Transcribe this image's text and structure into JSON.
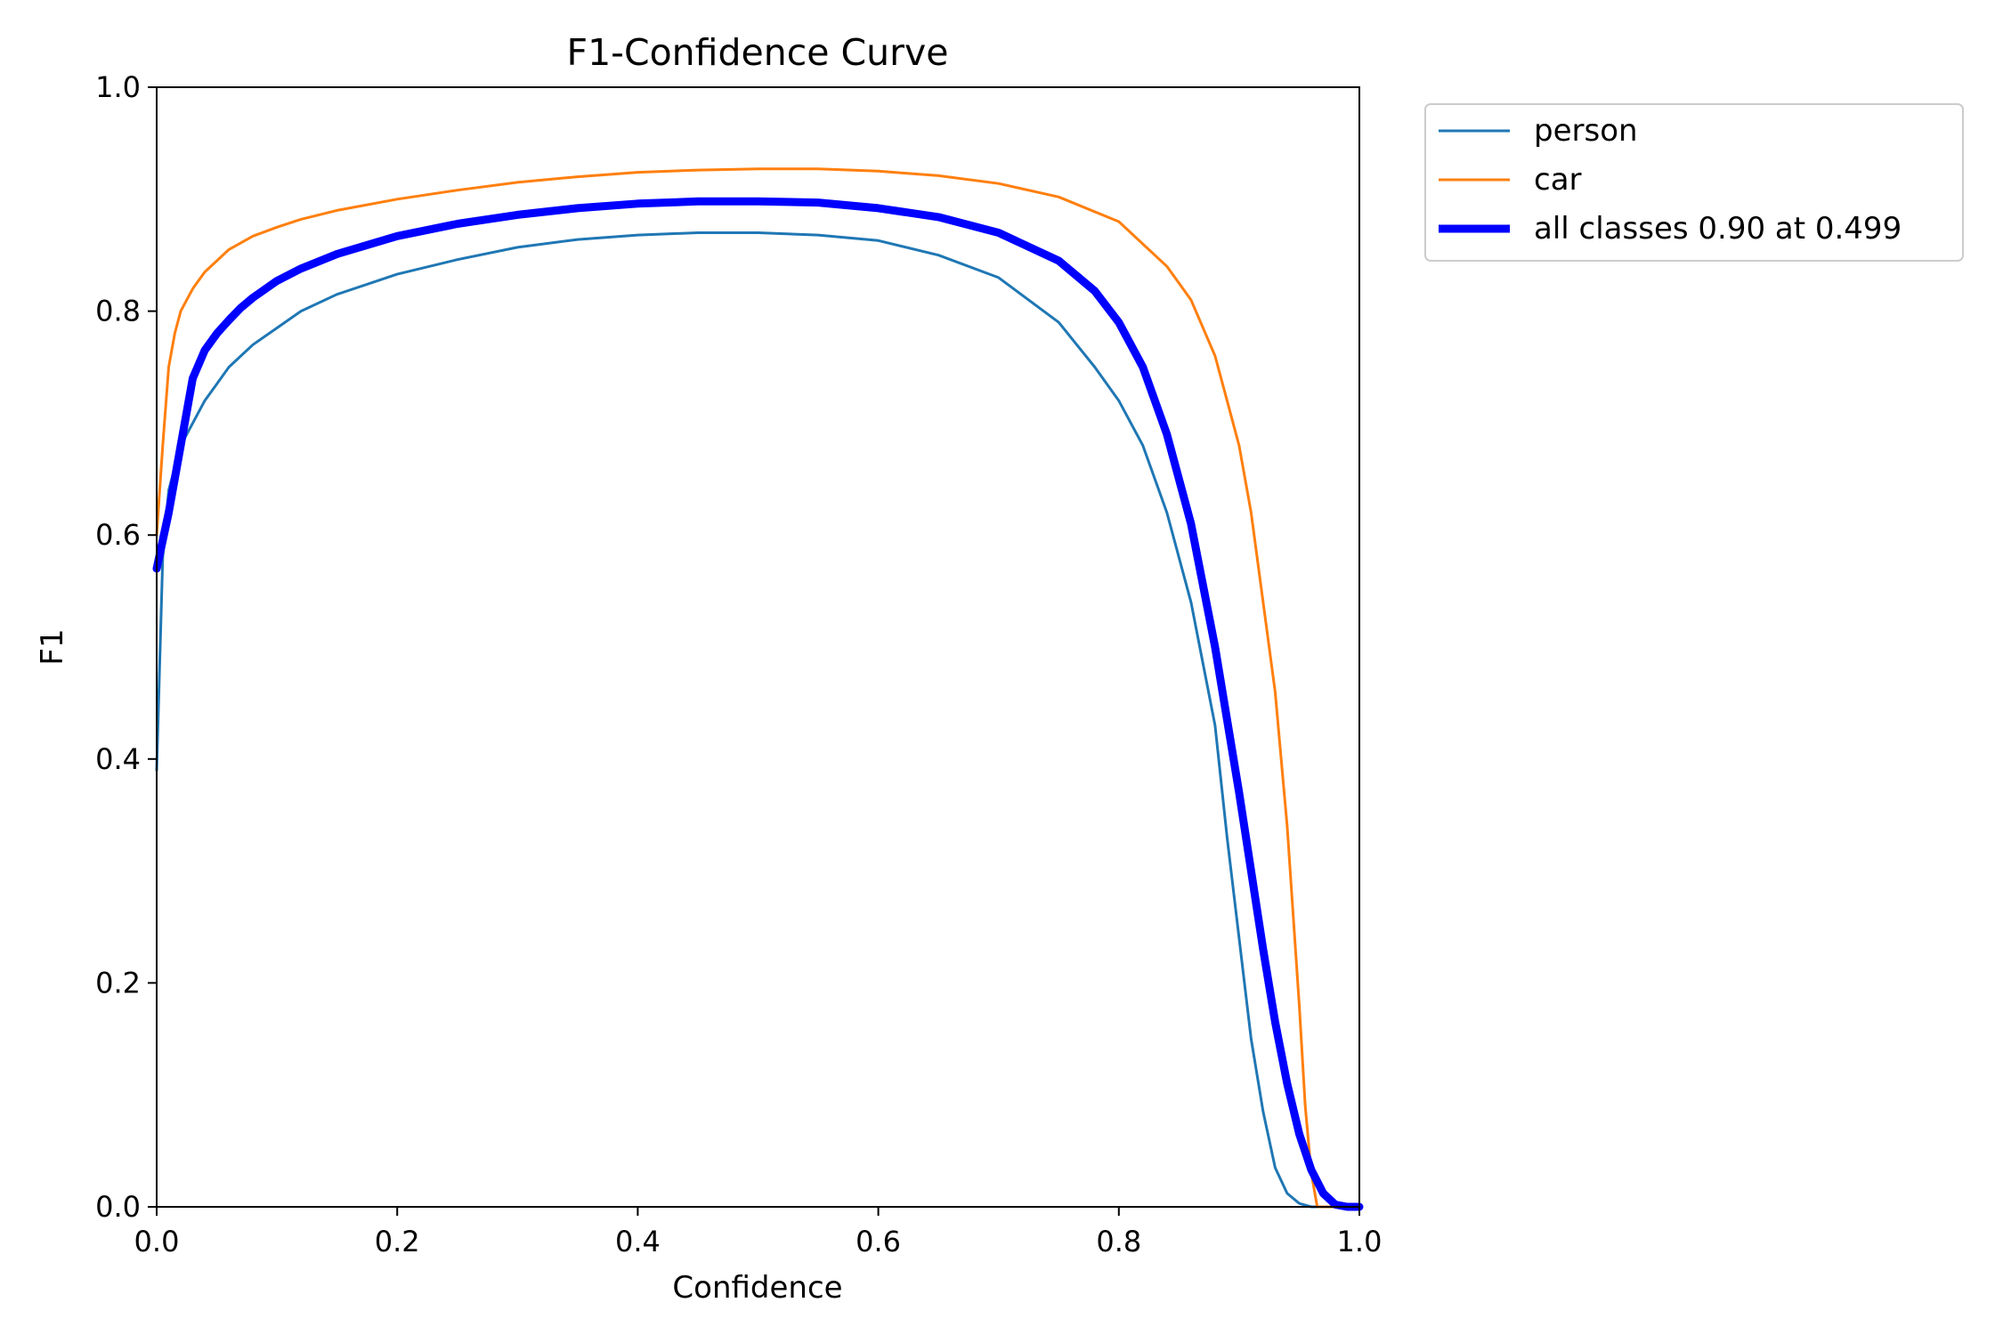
{
  "chart_data": {
    "type": "line",
    "title": "F1-Confidence Curve",
    "xlabel": "Confidence",
    "ylabel": "F1",
    "xlim": [
      0.0,
      1.0
    ],
    "ylim": [
      0.0,
      1.0
    ],
    "xticks": [
      "0.0",
      "0.2",
      "0.4",
      "0.6",
      "0.8",
      "1.0"
    ],
    "yticks": [
      "0.0",
      "0.2",
      "0.4",
      "0.6",
      "0.8",
      "1.0"
    ],
    "grid": false,
    "legend_position": "outside-top-right",
    "series": [
      {
        "name": "person",
        "color": "#1f77b4",
        "line_style": "thin",
        "points": [
          [
            0.0,
            0.39
          ],
          [
            0.005,
            0.58
          ],
          [
            0.01,
            0.64
          ],
          [
            0.02,
            0.68
          ],
          [
            0.03,
            0.7
          ],
          [
            0.04,
            0.72
          ],
          [
            0.05,
            0.735
          ],
          [
            0.06,
            0.75
          ],
          [
            0.07,
            0.76
          ],
          [
            0.08,
            0.77
          ],
          [
            0.1,
            0.785
          ],
          [
            0.12,
            0.8
          ],
          [
            0.15,
            0.815
          ],
          [
            0.2,
            0.833
          ],
          [
            0.25,
            0.846
          ],
          [
            0.3,
            0.857
          ],
          [
            0.35,
            0.864
          ],
          [
            0.4,
            0.868
          ],
          [
            0.45,
            0.87
          ],
          [
            0.5,
            0.87
          ],
          [
            0.55,
            0.868
          ],
          [
            0.6,
            0.863
          ],
          [
            0.65,
            0.85
          ],
          [
            0.7,
            0.83
          ],
          [
            0.75,
            0.79
          ],
          [
            0.78,
            0.75
          ],
          [
            0.8,
            0.72
          ],
          [
            0.82,
            0.68
          ],
          [
            0.84,
            0.62
          ],
          [
            0.86,
            0.54
          ],
          [
            0.88,
            0.43
          ],
          [
            0.89,
            0.33
          ],
          [
            0.9,
            0.24
          ],
          [
            0.91,
            0.15
          ],
          [
            0.92,
            0.085
          ],
          [
            0.93,
            0.035
          ],
          [
            0.94,
            0.012
          ],
          [
            0.95,
            0.003
          ],
          [
            0.96,
            0.0
          ],
          [
            1.0,
            0.0
          ]
        ]
      },
      {
        "name": "car",
        "color": "#ff7f0e",
        "line_style": "thin",
        "points": [
          [
            0.0,
            0.6
          ],
          [
            0.005,
            0.68
          ],
          [
            0.01,
            0.75
          ],
          [
            0.015,
            0.78
          ],
          [
            0.02,
            0.8
          ],
          [
            0.03,
            0.82
          ],
          [
            0.04,
            0.835
          ],
          [
            0.05,
            0.845
          ],
          [
            0.06,
            0.855
          ],
          [
            0.08,
            0.867
          ],
          [
            0.1,
            0.875
          ],
          [
            0.12,
            0.882
          ],
          [
            0.15,
            0.89
          ],
          [
            0.2,
            0.9
          ],
          [
            0.25,
            0.908
          ],
          [
            0.3,
            0.915
          ],
          [
            0.35,
            0.92
          ],
          [
            0.4,
            0.924
          ],
          [
            0.45,
            0.926
          ],
          [
            0.5,
            0.927
          ],
          [
            0.55,
            0.927
          ],
          [
            0.6,
            0.925
          ],
          [
            0.65,
            0.921
          ],
          [
            0.7,
            0.914
          ],
          [
            0.75,
            0.902
          ],
          [
            0.8,
            0.88
          ],
          [
            0.84,
            0.84
          ],
          [
            0.86,
            0.81
          ],
          [
            0.88,
            0.76
          ],
          [
            0.89,
            0.72
          ],
          [
            0.9,
            0.68
          ],
          [
            0.91,
            0.62
          ],
          [
            0.92,
            0.54
          ],
          [
            0.93,
            0.46
          ],
          [
            0.94,
            0.34
          ],
          [
            0.95,
            0.18
          ],
          [
            0.955,
            0.09
          ],
          [
            0.96,
            0.03
          ],
          [
            0.965,
            0.0
          ],
          [
            1.0,
            0.0
          ]
        ]
      },
      {
        "name": "all classes 0.90 at 0.499",
        "color": "#0000ff",
        "line_style": "thick",
        "points": [
          [
            0.0,
            0.57
          ],
          [
            0.01,
            0.62
          ],
          [
            0.02,
            0.68
          ],
          [
            0.03,
            0.74
          ],
          [
            0.04,
            0.765
          ],
          [
            0.05,
            0.78
          ],
          [
            0.06,
            0.792
          ],
          [
            0.07,
            0.803
          ],
          [
            0.08,
            0.812
          ],
          [
            0.1,
            0.827
          ],
          [
            0.12,
            0.838
          ],
          [
            0.15,
            0.851
          ],
          [
            0.2,
            0.867
          ],
          [
            0.25,
            0.878
          ],
          [
            0.3,
            0.886
          ],
          [
            0.35,
            0.892
          ],
          [
            0.4,
            0.896
          ],
          [
            0.45,
            0.898
          ],
          [
            0.5,
            0.898
          ],
          [
            0.55,
            0.897
          ],
          [
            0.6,
            0.892
          ],
          [
            0.65,
            0.884
          ],
          [
            0.7,
            0.87
          ],
          [
            0.75,
            0.845
          ],
          [
            0.78,
            0.818
          ],
          [
            0.8,
            0.79
          ],
          [
            0.82,
            0.75
          ],
          [
            0.84,
            0.69
          ],
          [
            0.86,
            0.61
          ],
          [
            0.88,
            0.5
          ],
          [
            0.9,
            0.37
          ],
          [
            0.92,
            0.23
          ],
          [
            0.93,
            0.165
          ],
          [
            0.94,
            0.11
          ],
          [
            0.95,
            0.065
          ],
          [
            0.96,
            0.033
          ],
          [
            0.97,
            0.012
          ],
          [
            0.98,
            0.002
          ],
          [
            0.99,
            0.0
          ],
          [
            1.0,
            0.0
          ]
        ]
      }
    ]
  }
}
